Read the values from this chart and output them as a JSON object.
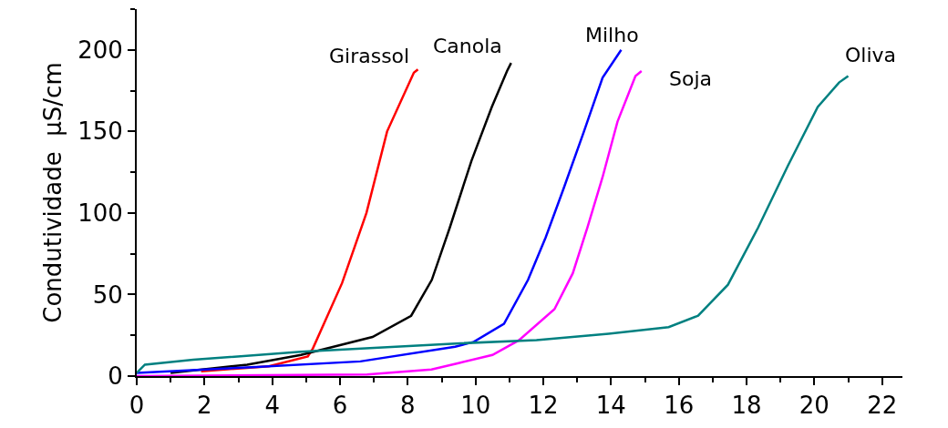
{
  "chart_data": {
    "type": "line",
    "ylabel": "Condutividade  µS/cm",
    "xlim": [
      0,
      22.6
    ],
    "xticks": [
      0,
      2,
      4,
      6,
      8,
      10,
      12,
      14,
      16,
      18,
      20,
      22
    ],
    "ylim": [
      0,
      225
    ],
    "yticks": [
      0,
      50,
      100,
      150,
      200
    ],
    "legend": false,
    "marker": "none",
    "line_style": "solid",
    "series": [
      {
        "name": "Girassol",
        "color": "#ff0000",
        "x": [
          1.9,
          3.9,
          5.05,
          5.2,
          6.06,
          6.78,
          7.39,
          8.18,
          8.3
        ],
        "values": [
          3,
          6,
          12,
          17,
          57,
          100,
          150,
          186,
          188
        ]
      },
      {
        "name": "Canola",
        "color": "#000000",
        "x": [
          1.0,
          3.26,
          4.85,
          6.96,
          8.1,
          8.71,
          9.24,
          9.88,
          10.48,
          10.93,
          11.05
        ],
        "values": [
          2,
          7,
          13,
          24,
          37,
          59,
          91,
          132,
          165,
          187,
          192
        ]
      },
      {
        "name": "Milho",
        "color": "#0000ff",
        "x": [
          0,
          3.4,
          6.6,
          9.4,
          9.95,
          10.84,
          11.55,
          12.07,
          12.6,
          13.2,
          13.75,
          14.3
        ],
        "values": [
          2,
          5.5,
          9,
          18,
          21,
          32,
          59,
          85,
          115,
          150,
          183,
          200
        ]
      },
      {
        "name": "Soja",
        "color": "#ff00ff",
        "x": [
          0,
          6.8,
          8.7,
          9.5,
          10.5,
          11.28,
          12.33,
          12.87,
          13.3,
          13.75,
          14.19,
          14.72,
          14.9
        ],
        "values": [
          0,
          1,
          4,
          8,
          13,
          22,
          41,
          63,
          91,
          122,
          156,
          184,
          187
        ]
      },
      {
        "name": "Oliva",
        "color": "#008080",
        "x": [
          0,
          0.24,
          1.67,
          4.85,
          9.43,
          11.8,
          13.93,
          15.7,
          16.57,
          17.45,
          18.34,
          19.22,
          20.1,
          20.73,
          21.0
        ],
        "values": [
          2,
          7,
          10,
          15,
          20,
          22,
          26,
          30,
          37,
          56,
          91,
          129,
          165,
          180,
          184
        ]
      }
    ]
  }
}
